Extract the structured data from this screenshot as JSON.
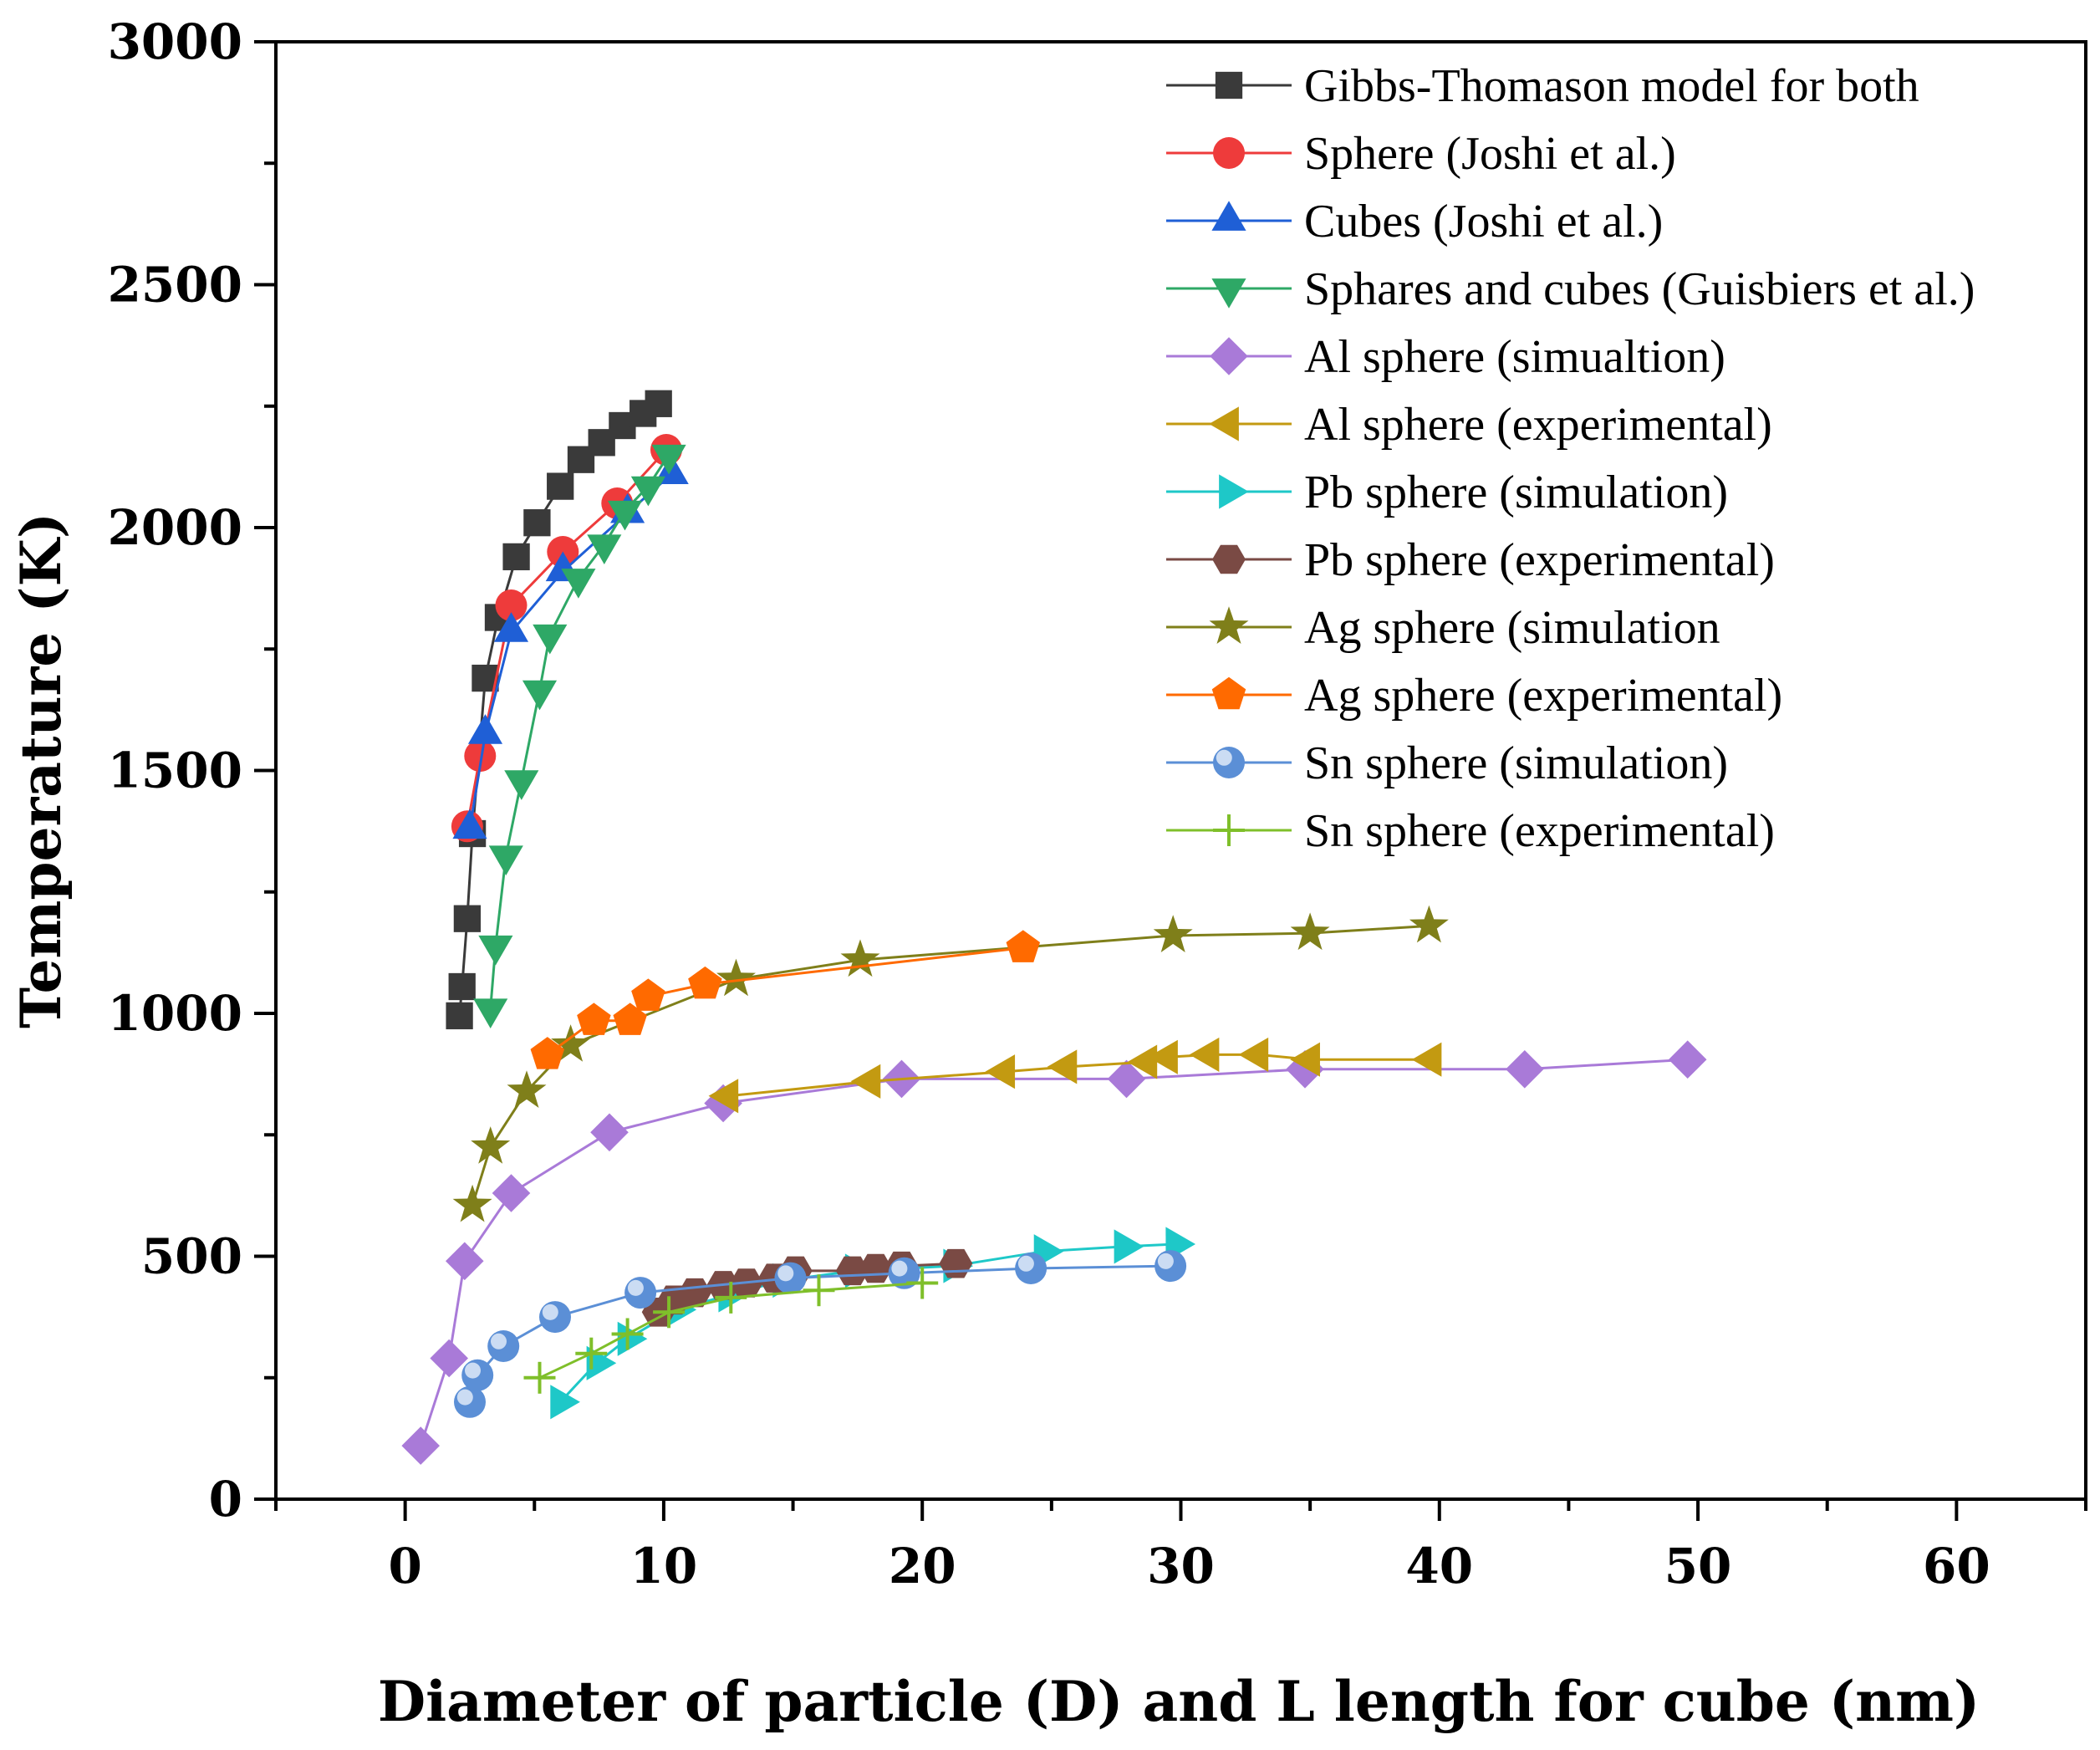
{
  "chart_data": {
    "type": "scatter",
    "title": "",
    "xlabel": "Diameter of particle (D) and L length for cube (nm)",
    "ylabel": "Temperature (K)",
    "xlim": [
      -5,
      65
    ],
    "ylim": [
      0,
      3000
    ],
    "x_ticks": [
      0,
      10,
      20,
      30,
      40,
      50,
      60
    ],
    "y_ticks": [
      0,
      500,
      1000,
      1500,
      2000,
      2500,
      3000
    ],
    "legend_position": "top-right",
    "grid": false,
    "series": [
      {
        "name": "Gibbs-Thomason model for both",
        "marker": "square",
        "color": "#3a3a3a",
        "x": [
          2.1,
          2.2,
          2.4,
          2.6,
          3.1,
          3.6,
          4.3,
          5.1,
          6.0,
          6.8,
          7.6,
          8.4,
          9.2,
          9.8
        ],
        "y": [
          995,
          1055,
          1195,
          1370,
          1690,
          1815,
          1940,
          2010,
          2085,
          2140,
          2175,
          2210,
          2235,
          2255
        ]
      },
      {
        "name": "Sphere (Joshi et al.)",
        "marker": "circle",
        "color": "#ee3b3b",
        "x": [
          2.4,
          2.9,
          4.1,
          6.1,
          8.2,
          10.1
        ],
        "y": [
          1385,
          1530,
          1840,
          1950,
          2050,
          2160
        ]
      },
      {
        "name": "Cubes (Joshi et al.)",
        "marker": "triangle-up",
        "color": "#1f5fd6",
        "x": [
          2.5,
          3.1,
          4.1,
          6.1,
          8.6,
          10.3
        ],
        "y": [
          1380,
          1575,
          1785,
          1910,
          2030,
          2110
        ]
      },
      {
        "name": "Sphares and cubes (Guisbiers et al.)",
        "marker": "triangle-down",
        "color": "#2ea866",
        "x": [
          3.3,
          3.5,
          3.9,
          4.5,
          5.2,
          5.6,
          6.7,
          7.7,
          8.5,
          9.4,
          10.2
        ],
        "y": [
          1010,
          1140,
          1325,
          1480,
          1665,
          1780,
          1895,
          1965,
          2035,
          2085,
          2150
        ]
      },
      {
        "name": "Al sphere (simualtion)",
        "marker": "diamond",
        "color": "#a97ad8",
        "x": [
          0.6,
          1.7,
          2.3,
          4.1,
          7.9,
          12.3,
          19.2,
          27.9,
          34.8,
          43.3,
          49.6
        ],
        "y": [
          110,
          290,
          490,
          630,
          755,
          815,
          865,
          865,
          885,
          885,
          905
        ]
      },
      {
        "name": "Al sphere (experimental)",
        "marker": "triangle-left",
        "color": "#c39a11",
        "x": [
          12.5,
          18.0,
          23.2,
          25.6,
          28.7,
          29.5,
          31.1,
          33.0,
          35.0,
          39.7
        ],
        "y": [
          830,
          860,
          880,
          890,
          900,
          910,
          915,
          915,
          905,
          905
        ]
      },
      {
        "name": "Pb sphere (simulation)",
        "marker": "triangle-right",
        "color": "#1ec8c8",
        "x": [
          6.0,
          7.4,
          8.6,
          10.5,
          12.5,
          14.6,
          17.4,
          21.2,
          24.7,
          27.8,
          29.8
        ],
        "y": [
          200,
          280,
          330,
          390,
          420,
          450,
          470,
          480,
          510,
          520,
          525
        ]
      },
      {
        "name": "Pb sphere (experimental)",
        "marker": "hexagon",
        "color": "#7a4a44",
        "x": [
          9.8,
          10.4,
          11.2,
          12.3,
          13.2,
          14.3,
          15.1,
          17.3,
          18.2,
          19.2,
          21.3
        ],
        "y": [
          385,
          410,
          425,
          440,
          445,
          455,
          470,
          470,
          475,
          480,
          485
        ]
      },
      {
        "name": "Ag sphere (simulation",
        "marker": "star",
        "color": "#7f7f1a",
        "x": [
          2.6,
          3.3,
          4.7,
          6.4,
          12.8,
          17.6,
          29.7,
          35.0,
          39.6
        ],
        "y": [
          605,
          725,
          840,
          935,
          1070,
          1110,
          1160,
          1165,
          1180
        ]
      },
      {
        "name": "Ag sphere (experimental)",
        "marker": "pentagon",
        "color": "#ff6a00",
        "x": [
          5.5,
          7.3,
          8.7,
          9.4,
          11.6,
          23.9
        ],
        "y": [
          915,
          985,
          985,
          1035,
          1060,
          1135
        ]
      },
      {
        "name": "Sn sphere (simulation)",
        "marker": "sphere",
        "color": "#5b8fd6",
        "x": [
          2.5,
          2.8,
          3.8,
          5.8,
          9.1,
          14.9,
          19.3,
          24.2,
          29.6
        ],
        "y": [
          200,
          255,
          315,
          375,
          425,
          455,
          465,
          475,
          480
        ]
      },
      {
        "name": "Sn sphere (experimental)",
        "marker": "plus",
        "color": "#7fbf2a",
        "x": [
          5.2,
          7.2,
          8.6,
          10.2,
          12.6,
          16.0,
          20.0
        ],
        "y": [
          250,
          300,
          340,
          385,
          415,
          430,
          445
        ]
      }
    ]
  }
}
